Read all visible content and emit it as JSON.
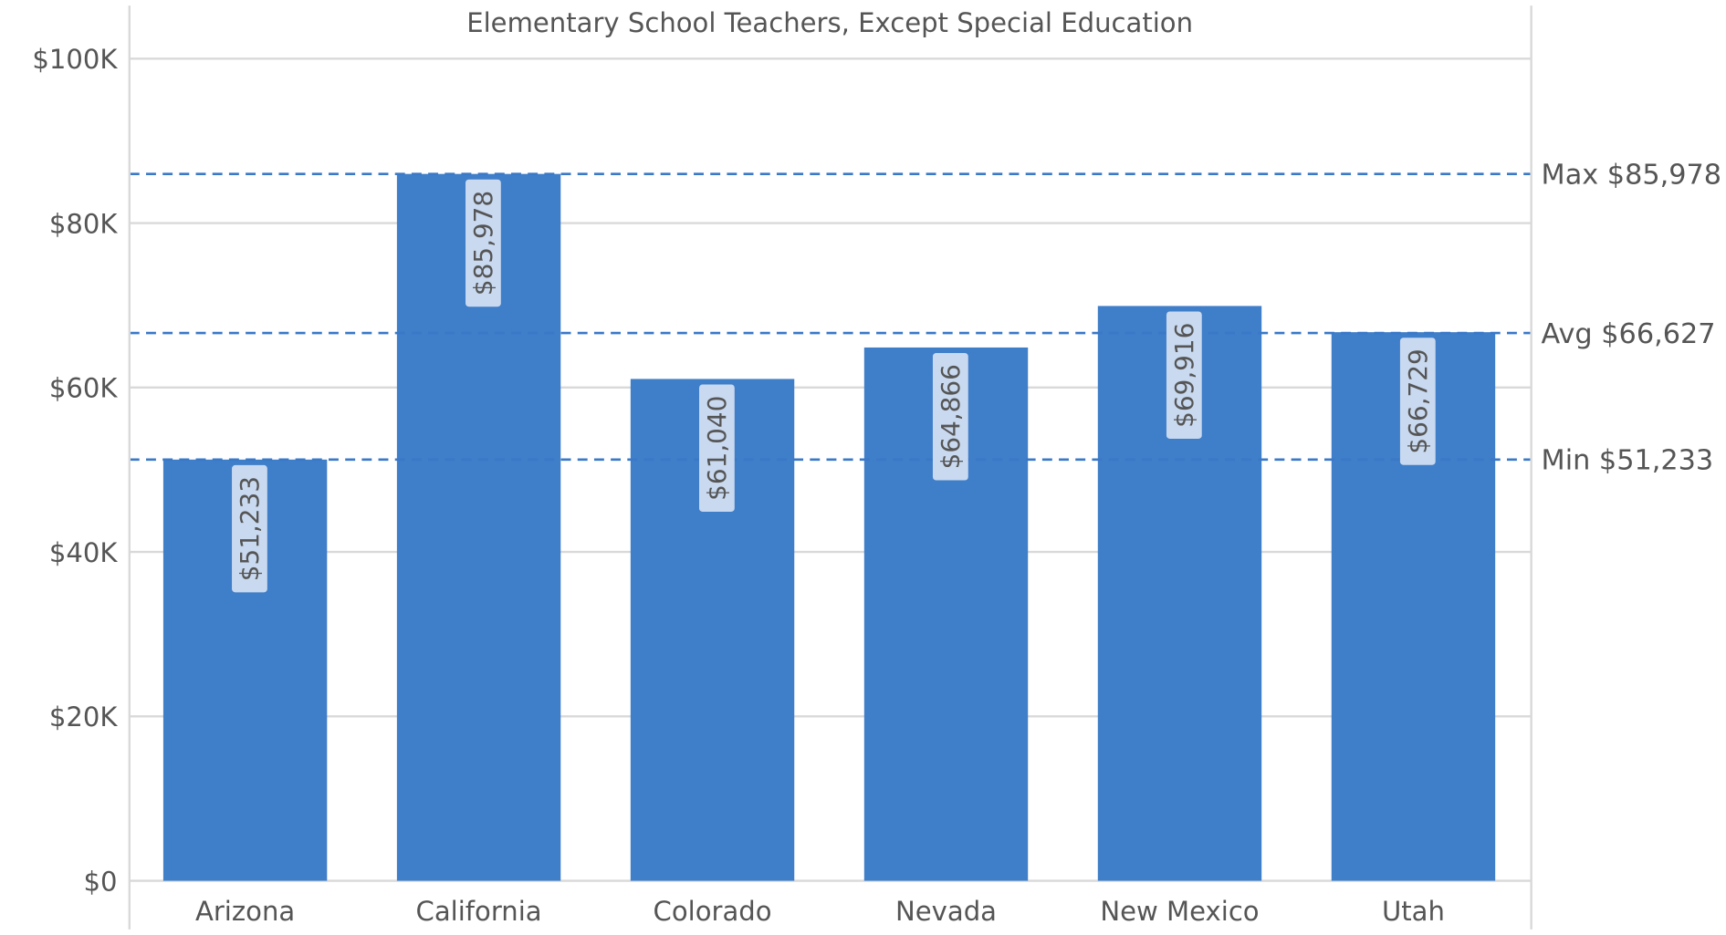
{
  "chart_data": {
    "type": "bar",
    "title": "Elementary School Teachers, Except Special Education",
    "categories": [
      "Arizona",
      "California",
      "Colorado",
      "Nevada",
      "New Mexico",
      "Utah"
    ],
    "values": [
      51233,
      85978,
      61040,
      64866,
      69916,
      66729
    ],
    "value_labels": [
      "$51,233",
      "$85,978",
      "$61,040",
      "$64,866",
      "$69,916",
      "$66,729"
    ],
    "xlabel": "",
    "ylabel": "",
    "ylim": [
      0,
      100000
    ],
    "yticks": [
      0,
      20000,
      40000,
      60000,
      80000,
      100000
    ],
    "ytick_labels": [
      "$0",
      "$20K",
      "$40K",
      "$60K",
      "$80K",
      "$100K"
    ],
    "grid": true,
    "reference_lines": [
      {
        "label": "Max $85,978",
        "value": 85978
      },
      {
        "label": "Avg $66,627",
        "value": 66627
      },
      {
        "label": "Min $51,233",
        "value": 51233
      }
    ],
    "colors": {
      "bar": "#3f7ec8",
      "reference_line": "#3a78c8",
      "label_box": "#c9d9ef",
      "grid": "#d9d9d9",
      "text": "#555555"
    }
  }
}
